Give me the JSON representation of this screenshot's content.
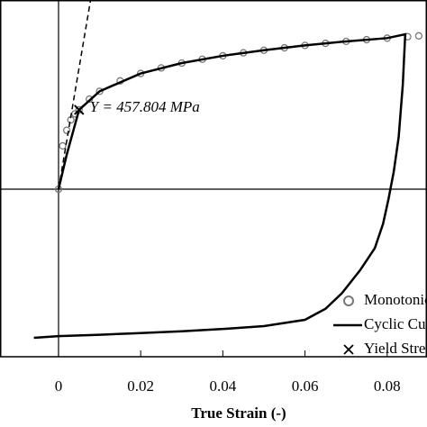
{
  "chart_data": {
    "type": "line",
    "xlabel": "True Strain (-)",
    "annotation": "Y = 457.804 MPa",
    "xlim": [
      -0.01425,
      0.0897
    ],
    "ylim": [
      -967,
      1092
    ],
    "xticks": [
      -0.02,
      0,
      0.02,
      0.04,
      0.06,
      0.08,
      0.1
    ],
    "series": [
      {
        "name": "Monotonic",
        "color": "#777777",
        "marker": "circle",
        "x": [
          0,
          0.001,
          0.002,
          0.003,
          0.004,
          0.005,
          0.0075,
          0.01,
          0.015,
          0.02,
          0.025,
          0.03,
          0.035,
          0.04,
          0.045,
          0.05,
          0.055,
          0.06,
          0.065,
          0.07,
          0.075,
          0.08,
          0.085,
          0.0877
        ],
        "values": [
          0,
          250,
          340,
          400,
          435,
          458,
          520,
          565,
          625,
          668,
          700,
          728,
          750,
          770,
          787,
          802,
          816,
          830,
          842,
          853,
          863,
          872,
          880,
          885
        ]
      },
      {
        "name": "Cyclic Curve",
        "color": "#000000",
        "marker": "line",
        "x": [
          0,
          0.002,
          0.005,
          0.01,
          0.02,
          0.03,
          0.04,
          0.05,
          0.06,
          0.07,
          0.08,
          0.0844,
          0.0838,
          0.0828,
          0.0816,
          0.0803,
          0.079,
          0.077,
          0.0734,
          0.069,
          0.065,
          0.06,
          0.05,
          0.0406,
          0.03,
          0.0186,
          0.01,
          0,
          -0.006
        ],
        "values": [
          0,
          200,
          458,
          565,
          668,
          728,
          770,
          802,
          830,
          853,
          872,
          894,
          600,
          300,
          100,
          -60,
          -200,
          -340,
          -468,
          -600,
          -690,
          -754,
          -790,
          -806,
          -820,
          -832,
          -840,
          -848,
          -858
        ]
      },
      {
        "name": "Yield Strength",
        "color": "#000000",
        "marker": "cross",
        "x": [
          0.005
        ],
        "values": [
          457.804
        ]
      },
      {
        "color": "#000000",
        "marker": "dash",
        "x": [
          0,
          0.0078
        ],
        "values": [
          0,
          1092
        ]
      }
    ],
    "legend": "lower right"
  }
}
